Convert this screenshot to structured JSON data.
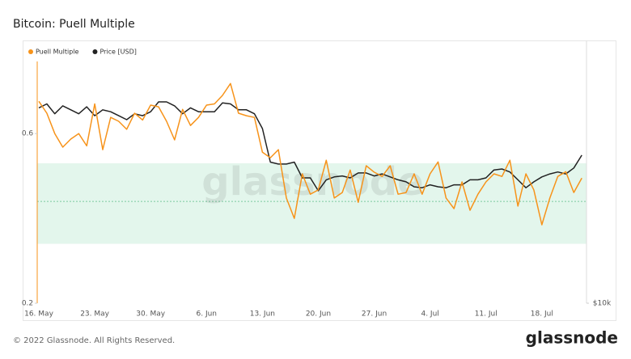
{
  "chart_data": {
    "type": "line",
    "title": "Bitcoin: Puell Multiple",
    "categories": [
      "16. May",
      null,
      null,
      null,
      null,
      null,
      null,
      "23. May",
      null,
      null,
      null,
      null,
      null,
      null,
      "30. May",
      null,
      null,
      null,
      null,
      null,
      null,
      "6. Jun",
      null,
      null,
      null,
      null,
      null,
      null,
      "13. Jun",
      null,
      null,
      null,
      null,
      null,
      null,
      "20. Jun",
      null,
      null,
      null,
      null,
      null,
      null,
      "27. Jun",
      null,
      null,
      null,
      null,
      null,
      null,
      "4. Jul",
      null,
      null,
      null,
      null,
      null,
      null,
      "11. Jul",
      null,
      null,
      null,
      null,
      null,
      null,
      "18. Jul",
      null,
      null,
      null,
      null,
      null
    ],
    "series": [
      {
        "name": "Puell Multiple",
        "color": "#f7931a",
        "axis": "y",
        "values": [
          0.676,
          0.648,
          0.6,
          0.568,
          0.587,
          0.6,
          0.571,
          0.67,
          0.562,
          0.638,
          0.629,
          0.61,
          0.648,
          0.632,
          0.667,
          0.663,
          0.629,
          0.585,
          0.657,
          0.619,
          0.638,
          0.667,
          0.67,
          0.69,
          0.718,
          0.648,
          0.642,
          0.638,
          0.556,
          0.543,
          0.562,
          0.448,
          0.4,
          0.505,
          0.457,
          0.467,
          0.537,
          0.448,
          0.461,
          0.514,
          0.438,
          0.524,
          0.509,
          0.499,
          0.524,
          0.457,
          0.461,
          0.505,
          0.457,
          0.505,
          0.533,
          0.448,
          0.423,
          0.486,
          0.419,
          0.457,
          0.486,
          0.505,
          0.499,
          0.537,
          0.429,
          0.505,
          0.467,
          0.385,
          0.448,
          0.499,
          0.51,
          0.461,
          0.495
        ]
      },
      {
        "name": "Price [USD]",
        "color": "#222222",
        "axis": "y2",
        "values": [
          29800,
          30200,
          29200,
          30000,
          29600,
          29200,
          29900,
          29000,
          29600,
          29400,
          29000,
          28600,
          29200,
          29000,
          29400,
          30400,
          30400,
          30000,
          29200,
          29800,
          29400,
          29400,
          29400,
          30300,
          30200,
          29600,
          29600,
          29200,
          27700,
          24300,
          24100,
          24100,
          24300,
          22700,
          22700,
          21400,
          22500,
          22800,
          22900,
          22700,
          23200,
          23200,
          22900,
          23100,
          22800,
          22500,
          22300,
          21800,
          21700,
          22000,
          21800,
          21700,
          22000,
          22000,
          22500,
          22500,
          22700,
          23500,
          23600,
          23300,
          22500,
          21700,
          22300,
          22800,
          23100,
          23300,
          23100,
          23700,
          25000
        ]
      }
    ],
    "ylim": [
      0.2,
      0.77
    ],
    "yticks": [
      0.2,
      0.6
    ],
    "y2lim": [
      10000,
      34500
    ],
    "y2ticks": [
      {
        "value": 10000,
        "label": "$10k"
      }
    ],
    "band": [
      0.34,
      0.53
    ],
    "band_color": "#e3f6ec",
    "reference_line": 0.44,
    "legend": "top-left",
    "watermark": "glassnode"
  },
  "footer": {
    "copyright": "© 2022 Glassnode. All Rights Reserved.",
    "logo": "glassnode"
  }
}
